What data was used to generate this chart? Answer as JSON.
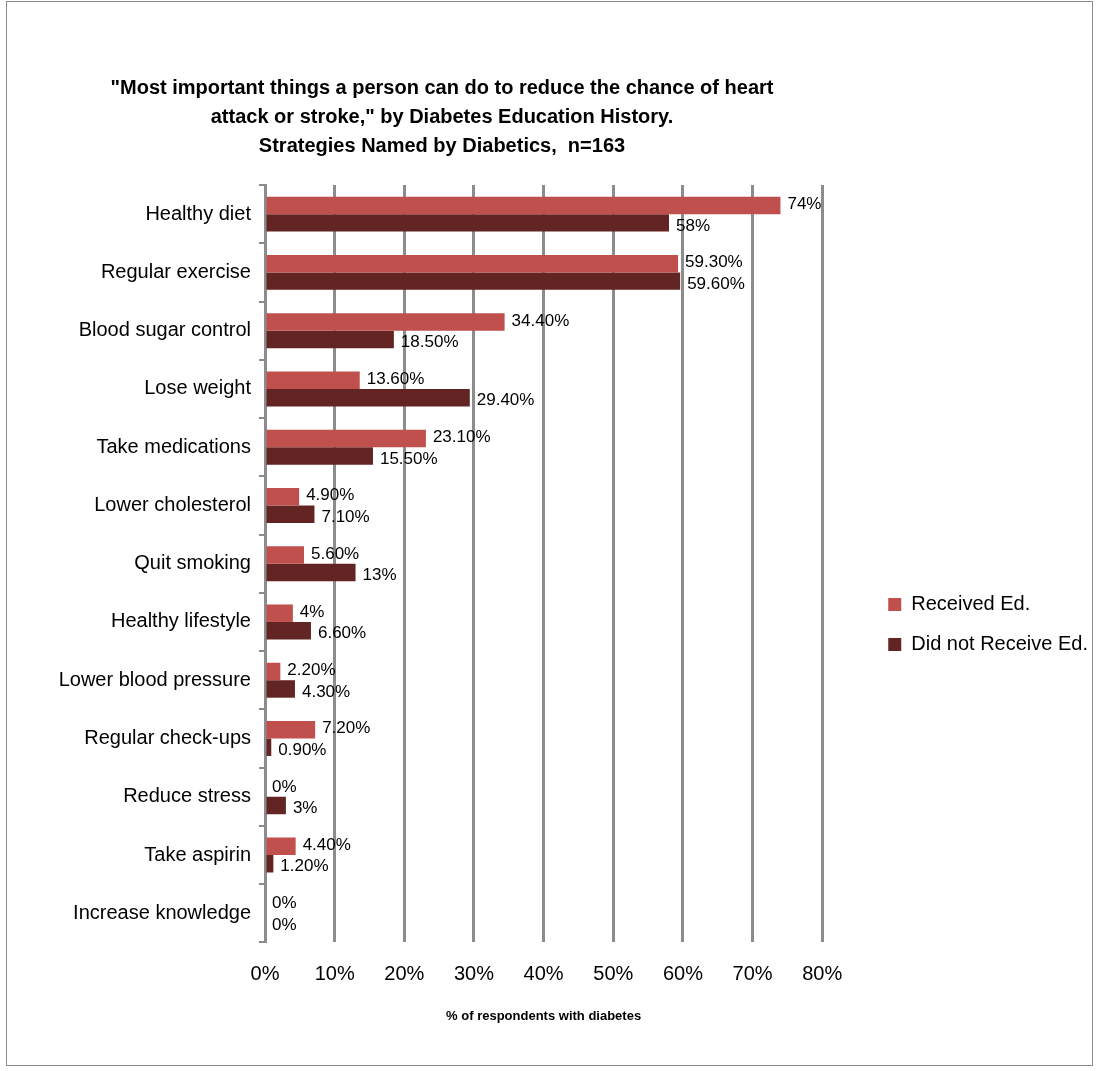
{
  "chart_data": {
    "type": "bar",
    "orientation": "horizontal",
    "title": "\"Most important things a person can do to reduce the chance of heart attack or stroke,\" by Diabetes Education History.",
    "subtitle": "Strategies Named by Diabetics,  n=163",
    "xlabel": "% of respondents with diabetes",
    "categories": [
      "Healthy diet",
      "Regular exercise",
      "Blood sugar control",
      "Lose weight",
      "Take medications",
      "Lower cholesterol",
      "Quit smoking",
      "Healthy lifestyle",
      "Lower blood pressure",
      "Regular check-ups",
      "Reduce stress",
      "Take aspirin",
      "Increase knowledge"
    ],
    "series": [
      {
        "name": "Received Ed.",
        "color": "#c0504d",
        "values": [
          74,
          59.3,
          34.4,
          13.6,
          23.1,
          4.9,
          5.6,
          4,
          2.2,
          7.2,
          0,
          4.4,
          0
        ],
        "value_labels": [
          "74%",
          "59.30%",
          "34.40%",
          "13.60%",
          "23.10%",
          "4.90%",
          "5.60%",
          "4%",
          "2.20%",
          "7.20%",
          "0%",
          "4.40%",
          "0%"
        ]
      },
      {
        "name": "Did not Receive Ed.",
        "color": "#632523",
        "values": [
          58,
          59.6,
          18.5,
          29.4,
          15.5,
          7.1,
          13,
          6.6,
          4.3,
          0.9,
          3,
          1.2,
          0
        ],
        "value_labels": [
          "58%",
          "59.60%",
          "18.50%",
          "29.40%",
          "15.50%",
          "7.10%",
          "13%",
          "6.60%",
          "4.30%",
          "0.90%",
          "3%",
          "1.20%",
          "0%"
        ]
      }
    ],
    "xlim": [
      0,
      80
    ],
    "xticks": [
      {
        "value": 0,
        "label": "0%"
      },
      {
        "value": 10,
        "label": "10%"
      },
      {
        "value": 20,
        "label": "20%"
      },
      {
        "value": 30,
        "label": "30%"
      },
      {
        "value": 40,
        "label": "40%"
      },
      {
        "value": 50,
        "label": "50%"
      },
      {
        "value": 60,
        "label": "60%"
      },
      {
        "value": 70,
        "label": "70%"
      },
      {
        "value": 80,
        "label": "80%"
      }
    ],
    "grid": "x",
    "legend": "right"
  }
}
